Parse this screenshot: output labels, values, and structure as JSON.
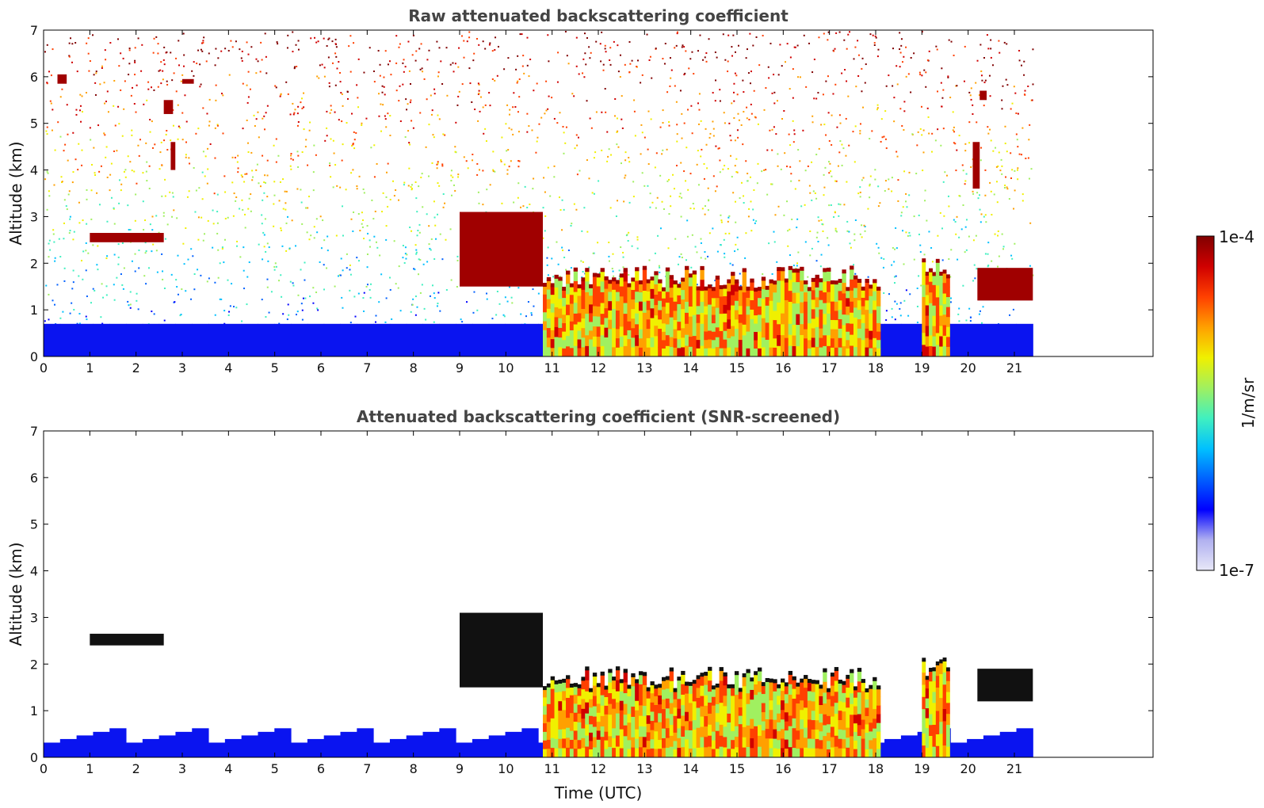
{
  "chart_data": [
    {
      "type": "heatmap",
      "title": "Raw attenuated backscattering coefficient",
      "xlabel": "",
      "ylabel": "Altitude (km)",
      "xlim": [
        0,
        24
      ],
      "ylim": [
        0,
        7
      ],
      "xticks": [
        0,
        1,
        2,
        3,
        4,
        5,
        6,
        7,
        8,
        9,
        10,
        11,
        12,
        13,
        14,
        15,
        16,
        17,
        18,
        19,
        20,
        21
      ],
      "yticks": [
        0,
        1,
        2,
        3,
        4,
        5,
        6,
        7
      ],
      "data_extent_x": [
        0,
        21.4
      ],
      "noise": "dense speckle at all altitudes",
      "boundary_layer_top_km": 0.7,
      "features": [
        {
          "kind": "elevated_layer",
          "x": [
            1.0,
            2.6
          ],
          "y": [
            2.45,
            2.65
          ],
          "level": "max"
        },
        {
          "kind": "blob",
          "x": [
            0.3,
            0.5
          ],
          "y": [
            5.85,
            6.05
          ],
          "level": "max"
        },
        {
          "kind": "blob",
          "x": [
            2.6,
            2.8
          ],
          "y": [
            5.2,
            5.5
          ],
          "level": "max"
        },
        {
          "kind": "blob",
          "x": [
            3.0,
            3.25
          ],
          "y": [
            5.85,
            5.95
          ],
          "level": "max"
        },
        {
          "kind": "blob",
          "x": [
            2.75,
            2.85
          ],
          "y": [
            4.0,
            4.6
          ],
          "level": "max"
        },
        {
          "kind": "blob",
          "x": [
            20.1,
            20.25
          ],
          "y": [
            3.6,
            4.6
          ],
          "level": "max"
        },
        {
          "kind": "blob",
          "x": [
            20.25,
            20.4
          ],
          "y": [
            5.5,
            5.7
          ],
          "level": "max"
        },
        {
          "kind": "cloud_band",
          "x": [
            10.8,
            18.1
          ],
          "y": [
            0.0,
            1.9
          ],
          "level": "high"
        },
        {
          "kind": "cloud_band",
          "x": [
            19.0,
            19.6
          ],
          "y": [
            0.0,
            2.1
          ],
          "level": "high"
        },
        {
          "kind": "cloud_top",
          "x": [
            9.0,
            10.8
          ],
          "y": [
            1.5,
            3.1
          ],
          "level": "max"
        },
        {
          "kind": "cloud_top",
          "x": [
            20.2,
            21.4
          ],
          "y": [
            1.2,
            1.9
          ],
          "level": "max"
        }
      ]
    },
    {
      "type": "heatmap",
      "title": "Attenuated backscattering coefficient (SNR-screened)",
      "xlabel": "Time (UTC)",
      "ylabel": "Altitude (km)",
      "xlim": [
        0,
        24
      ],
      "ylim": [
        0,
        7
      ],
      "xticks": [
        0,
        1,
        2,
        3,
        4,
        5,
        6,
        7,
        8,
        9,
        10,
        11,
        12,
        13,
        14,
        15,
        16,
        17,
        18,
        19,
        20,
        21
      ],
      "yticks": [
        0,
        1,
        2,
        3,
        4,
        5,
        6,
        7
      ],
      "data_extent_x": [
        0,
        21.4
      ],
      "noise": "screened out (white background)",
      "boundary_layer_top_km": 0.7,
      "features": [
        {
          "kind": "elevated_layer",
          "x": [
            1.0,
            2.6
          ],
          "y": [
            2.4,
            2.65
          ],
          "level": "black"
        },
        {
          "kind": "cloud_band",
          "x": [
            10.8,
            18.1
          ],
          "y": [
            0.0,
            1.9
          ],
          "level": "high"
        },
        {
          "kind": "cloud_band",
          "x": [
            19.0,
            19.6
          ],
          "y": [
            0.0,
            2.1
          ],
          "level": "high"
        },
        {
          "kind": "cloud_top",
          "x": [
            9.0,
            10.8
          ],
          "y": [
            1.5,
            3.1
          ],
          "level": "black"
        },
        {
          "kind": "cloud_top",
          "x": [
            20.2,
            21.4
          ],
          "y": [
            1.2,
            1.9
          ],
          "level": "black"
        }
      ]
    }
  ],
  "colorbar": {
    "label": "1/m/sr",
    "max_label": "1e-4",
    "min_label": "1e-7",
    "colormap": [
      "#e8e8f8",
      "#b0b0f0",
      "#0000ff",
      "#0060ff",
      "#00c0ff",
      "#40f0c0",
      "#a0f060",
      "#f0f000",
      "#ffa000",
      "#ff4000",
      "#d00000",
      "#800000"
    ]
  }
}
